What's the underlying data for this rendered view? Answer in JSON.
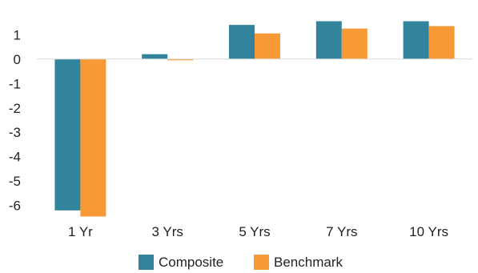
{
  "chart_data": {
    "type": "bar",
    "title": "",
    "xlabel": "",
    "ylabel": "",
    "categories": [
      "1 Yr",
      "3 Yrs",
      "5 Yrs",
      "7 Yrs",
      "10 Yrs"
    ],
    "series": [
      {
        "name": "Composite",
        "color": "#31849B",
        "values": [
          -6.2,
          0.2,
          1.4,
          1.55,
          1.55
        ]
      },
      {
        "name": "Benchmark",
        "color": "#F79A35",
        "values": [
          -6.45,
          -0.05,
          1.05,
          1.25,
          1.35
        ]
      }
    ],
    "ylim": [
      -6.6,
      1.6
    ],
    "yticks": [
      1,
      0,
      -1,
      -2,
      -3,
      -4,
      -5,
      -6
    ],
    "ytick_labels": [
      "1",
      "0",
      "-1",
      "-2",
      "-3",
      "-4",
      "-5",
      "-6"
    ],
    "grid": false,
    "legend_position": "bottom"
  }
}
